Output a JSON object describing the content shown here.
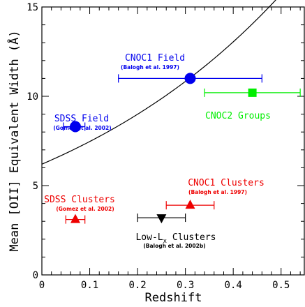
{
  "chart_data": {
    "type": "scatter",
    "xlabel": "Redshift",
    "ylabel": "Mean [OII] Equivalent Width (Å)",
    "xlim": [
      0,
      0.55
    ],
    "ylim": [
      0,
      15
    ],
    "x_ticks": [
      "0",
      "0.1",
      "0.2",
      "0.3",
      "0.4",
      "0.5"
    ],
    "y_ticks": [
      "0",
      "5",
      "10",
      "15"
    ],
    "x_tick_values": [
      0,
      0.1,
      0.2,
      0.3,
      0.4,
      0.5
    ],
    "y_tick_values": [
      0,
      5,
      10,
      15
    ],
    "grid": false,
    "curve": {
      "form": "exponential",
      "a": 6.2,
      "b": 1.86,
      "x": [
        0,
        0.55
      ]
    },
    "series": [
      {
        "name": "CNOC1 Field",
        "citation": "(Balogh et al. 1997)",
        "marker": "circle",
        "color": "#0000ee",
        "x": 0.31,
        "y": 11.0,
        "xerr": [
          0.16,
          0.46
        ]
      },
      {
        "name": "SDSS Field",
        "citation": "(Gomez et al. 2002)",
        "marker": "circle",
        "color": "#0000ee",
        "x": 0.07,
        "y": 8.3,
        "xerr": [
          0.045,
          0.09
        ]
      },
      {
        "name": "CNOC2 Groups",
        "citation": "",
        "marker": "square",
        "color": "#00ee00",
        "x": 0.44,
        "y": 10.2,
        "xerr": [
          0.34,
          0.54
        ]
      },
      {
        "name": "CNOC1 Clusters",
        "citation": "(Balogh et al. 1997)",
        "marker": "triangle-up",
        "color": "#ee0000",
        "x": 0.31,
        "y": 3.9,
        "xerr": [
          0.26,
          0.36
        ]
      },
      {
        "name": "SDSS Clusters",
        "citation": "(Gomez et al. 2002)",
        "marker": "triangle-up",
        "color": "#ee0000",
        "x": 0.07,
        "y": 3.1,
        "xerr": [
          0.05,
          0.09
        ]
      },
      {
        "name": "Low-L",
        "name_subscript": "x",
        "name_suffix": " Clusters",
        "citation": "(Balogh et al. 2002b)",
        "marker": "triangle-down",
        "color": "#000000",
        "x": 0.25,
        "y": 3.2,
        "xerr": [
          0.2,
          0.3
        ]
      }
    ]
  }
}
